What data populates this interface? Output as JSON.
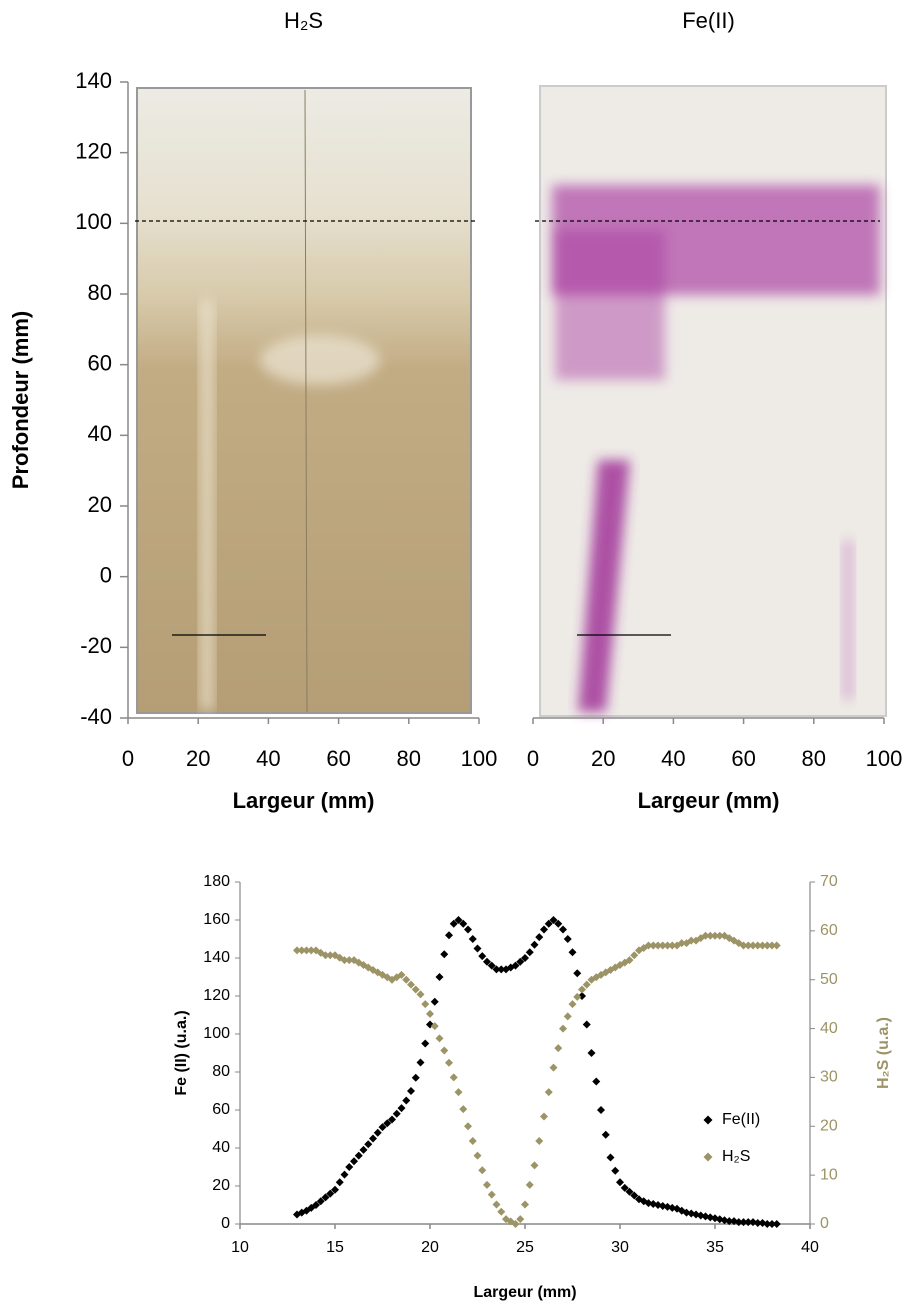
{
  "chart_data": [
    {
      "type": "image",
      "title": "H₂S",
      "xlabel": "Largeur (mm)",
      "ylabel": "Profondeur (mm)",
      "xlim": [
        0,
        100
      ],
      "xticks": [
        0,
        20,
        40,
        60,
        80,
        100
      ],
      "ylim": [
        -40,
        140
      ],
      "yticks": [
        -40,
        -20,
        0,
        20,
        40,
        60,
        80,
        100,
        120,
        140
      ]
    },
    {
      "type": "image",
      "title": "Fe(II)",
      "xlabel": "Largeur (mm)",
      "xlim": [
        0,
        100
      ],
      "xticks": [
        0,
        20,
        40,
        60,
        80,
        100
      ]
    },
    {
      "type": "scatter",
      "xlabel": "Largeur (mm)",
      "ylabel": "Fe (II) (u.a.)",
      "y2label": "H₂S (u.a.)",
      "xlim": [
        10,
        40
      ],
      "xticks": [
        10,
        15,
        20,
        25,
        30,
        35,
        40
      ],
      "ylim": [
        0,
        180
      ],
      "yticks": [
        0,
        20,
        40,
        60,
        80,
        100,
        120,
        140,
        160,
        180
      ],
      "y2lim": [
        0,
        70
      ],
      "y2ticks": [
        0,
        10,
        20,
        30,
        40,
        50,
        60,
        70
      ],
      "x": [
        13,
        13.25,
        13.5,
        13.75,
        14,
        14.25,
        14.5,
        14.75,
        15,
        15.25,
        15.5,
        15.75,
        16,
        16.25,
        16.5,
        16.75,
        17,
        17.25,
        17.5,
        17.75,
        18,
        18.25,
        18.5,
        18.75,
        19,
        19.25,
        19.5,
        19.75,
        20,
        20.25,
        20.5,
        20.75,
        21,
        21.25,
        21.5,
        21.75,
        22,
        22.25,
        22.5,
        22.75,
        23,
        23.25,
        23.5,
        23.75,
        24,
        24.25,
        24.5,
        24.75,
        25,
        25.25,
        25.5,
        25.75,
        26,
        26.25,
        26.5,
        26.75,
        27,
        27.25,
        27.5,
        27.75,
        28,
        28.25,
        28.5,
        28.75,
        29,
        29.25,
        29.5,
        29.75,
        30,
        30.25,
        30.5,
        30.75,
        31,
        31.25,
        31.5,
        31.75,
        32,
        32.25,
        32.5,
        32.75,
        33,
        33.25,
        33.5,
        33.75,
        34,
        34.25,
        34.5,
        34.75,
        35,
        35.25,
        35.5,
        35.75,
        36,
        36.25,
        36.5,
        36.75,
        37,
        37.25,
        37.5,
        37.75,
        38,
        38.25
      ],
      "series": [
        {
          "name": "Fe(II)",
          "color": "#000000",
          "values": [
            5,
            6,
            7,
            8.5,
            10,
            12,
            14,
            16,
            18,
            22,
            26,
            30,
            33,
            36,
            39,
            42,
            45,
            48,
            51,
            53,
            55,
            58,
            61,
            65,
            70,
            77,
            85,
            95,
            105,
            117,
            130,
            142,
            152,
            158,
            160,
            158,
            155,
            150,
            145,
            141,
            138,
            136,
            134,
            134,
            134,
            135,
            136,
            138,
            140,
            143,
            147,
            151,
            155,
            158,
            160,
            158,
            155,
            150,
            143,
            132,
            120,
            105,
            90,
            75,
            60,
            47,
            35,
            28,
            22,
            19,
            17,
            15,
            13,
            12,
            11,
            10.5,
            10,
            9.5,
            9,
            8.5,
            8,
            7,
            6,
            5.5,
            5,
            4.5,
            4,
            3.5,
            3,
            2.5,
            2,
            1.5,
            1.5,
            1,
            1,
            1,
            1,
            0.5,
            0.5,
            0,
            0,
            0
          ]
        },
        {
          "name": "H₂S",
          "color": "#9c9466",
          "axis": "y2",
          "values": [
            56,
            56,
            56,
            56,
            56,
            55.5,
            55,
            55,
            55,
            54.5,
            54,
            54,
            54,
            53.5,
            53,
            52.5,
            52,
            51.5,
            51,
            50.5,
            50,
            50.5,
            51,
            50,
            49,
            48,
            47,
            45,
            43,
            40.5,
            38,
            35.5,
            33,
            30,
            27,
            23.5,
            20,
            17,
            14,
            11,
            8,
            6,
            4,
            2.5,
            1,
            0.5,
            0,
            1,
            4,
            8,
            12,
            17,
            22,
            27,
            32,
            36,
            40,
            42.5,
            45,
            46.5,
            48,
            49,
            50,
            50.5,
            51,
            51.5,
            52,
            52.5,
            53,
            53.5,
            54,
            55,
            56,
            56.5,
            57,
            57,
            57,
            57,
            57,
            57,
            57,
            57.5,
            57.5,
            58,
            58,
            58.5,
            59,
            59,
            59,
            59,
            59,
            58.5,
            58,
            57.5,
            57,
            57,
            57,
            57,
            57,
            57,
            57,
            57
          ]
        }
      ]
    }
  ]
}
